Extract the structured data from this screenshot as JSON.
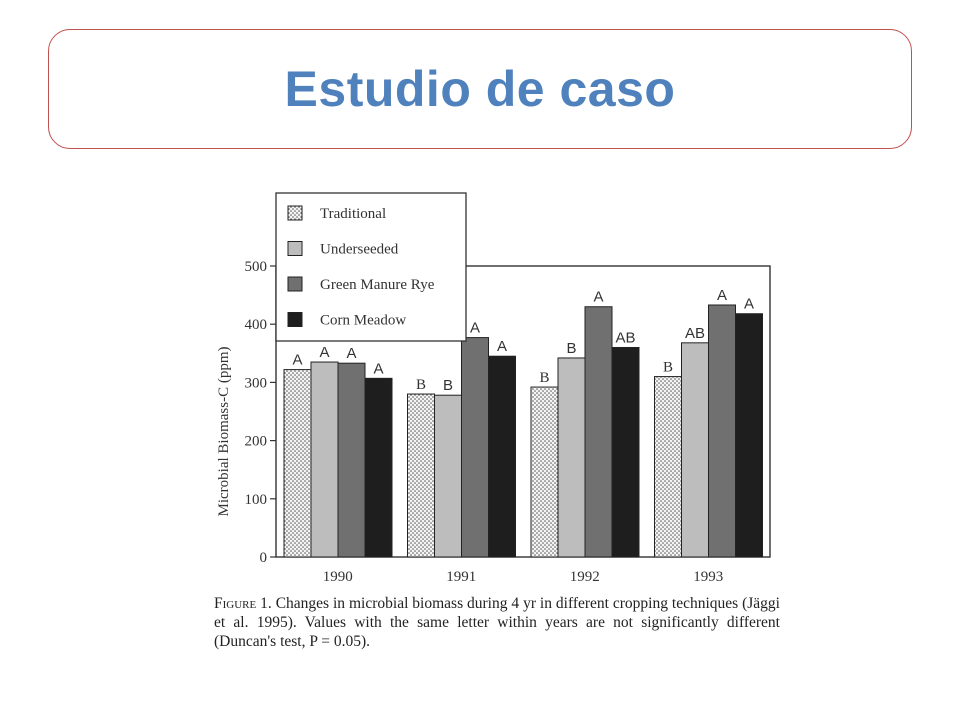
{
  "slide": {
    "title": "Estudio de caso"
  },
  "chart_data": {
    "type": "bar",
    "title": "",
    "xlabel": "",
    "ylabel": "Microbial Biomass-C (ppm)",
    "ylim": [
      0,
      500
    ],
    "yticks": [
      "0",
      "100",
      "200",
      "300",
      "400",
      "500"
    ],
    "categories": [
      "1990",
      "1991",
      "1992",
      "1993"
    ],
    "legend_position": "top-left",
    "series": [
      {
        "name": "Traditional",
        "pattern": "dotted",
        "color": "#f2f2f2",
        "values": [
          322,
          280,
          292,
          310
        ],
        "letters": [
          "A",
          "B",
          "B",
          "B"
        ]
      },
      {
        "name": "Underseeded",
        "pattern": "solid",
        "color": "#bdbdbd",
        "values": [
          335,
          278,
          342,
          368
        ],
        "letters": [
          "A",
          "B",
          "B",
          "AB"
        ]
      },
      {
        "name": "Green Manure Rye",
        "pattern": "solid",
        "color": "#707070",
        "values": [
          333,
          377,
          430,
          433
        ],
        "letters": [
          "A",
          "A",
          "A",
          "A"
        ]
      },
      {
        "name": "Corn Meadow",
        "pattern": "solid",
        "color": "#1e1e1e",
        "values": [
          307,
          345,
          360,
          418
        ],
        "letters": [
          "A",
          "A",
          "AB",
          "A"
        ]
      }
    ]
  },
  "caption": {
    "label": "Figure 1.",
    "text": " Changes in microbial biomass during 4 yr in different cropping techniques (Jäggi et al. 1995). Values with the same letter within years are not significantly different (Duncan's test, P = 0.05)."
  }
}
